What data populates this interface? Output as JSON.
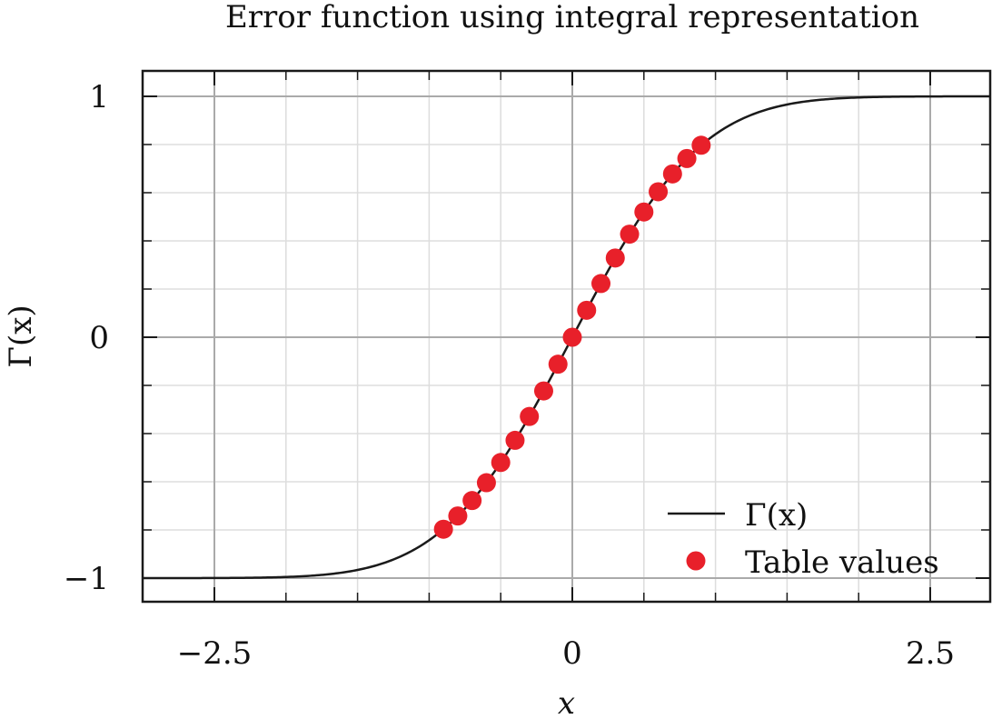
{
  "chart_data": {
    "type": "line",
    "title": "Error function using integral representation",
    "xlabel": "x",
    "ylabel": "Γ(x)",
    "xlim": [
      -3.0,
      3.0
    ],
    "ylim": [
      -1.05,
      1.0
    ],
    "x_ticks": [
      {
        "value": -2.5,
        "label": "−2.5"
      },
      {
        "value": 0,
        "label": "0"
      },
      {
        "value": 2.5,
        "label": "2.5"
      }
    ],
    "y_ticks": [
      {
        "value": -1,
        "label": "−1"
      },
      {
        "value": 0,
        "label": "0"
      },
      {
        "value": 1,
        "label": "1"
      }
    ],
    "x_minor_step": 0.5,
    "y_minor_step": 0.2,
    "grid": true,
    "legend_position": "bottom-right",
    "series": [
      {
        "name": "Γ(x)",
        "kind": "line",
        "color": "#1a1a1a",
        "function": "erf",
        "x_range": [
          -3.0,
          3.0
        ]
      },
      {
        "name": "Table values",
        "kind": "scatter",
        "color": "#e8202a",
        "points": [
          {
            "x": -0.9,
            "y": -0.797
          },
          {
            "x": -0.8,
            "y": -0.742
          },
          {
            "x": -0.7,
            "y": -0.678
          },
          {
            "x": -0.6,
            "y": -0.604
          },
          {
            "x": -0.5,
            "y": -0.52
          },
          {
            "x": -0.4,
            "y": -0.428
          },
          {
            "x": -0.3,
            "y": -0.329
          },
          {
            "x": -0.2,
            "y": -0.223
          },
          {
            "x": -0.1,
            "y": -0.112
          },
          {
            "x": 0.0,
            "y": 0.0
          },
          {
            "x": 0.1,
            "y": 0.112
          },
          {
            "x": 0.2,
            "y": 0.223
          },
          {
            "x": 0.3,
            "y": 0.329
          },
          {
            "x": 0.4,
            "y": 0.428
          },
          {
            "x": 0.5,
            "y": 0.52
          },
          {
            "x": 0.6,
            "y": 0.604
          },
          {
            "x": 0.7,
            "y": 0.678
          },
          {
            "x": 0.8,
            "y": 0.742
          },
          {
            "x": 0.9,
            "y": 0.797
          }
        ]
      }
    ]
  }
}
